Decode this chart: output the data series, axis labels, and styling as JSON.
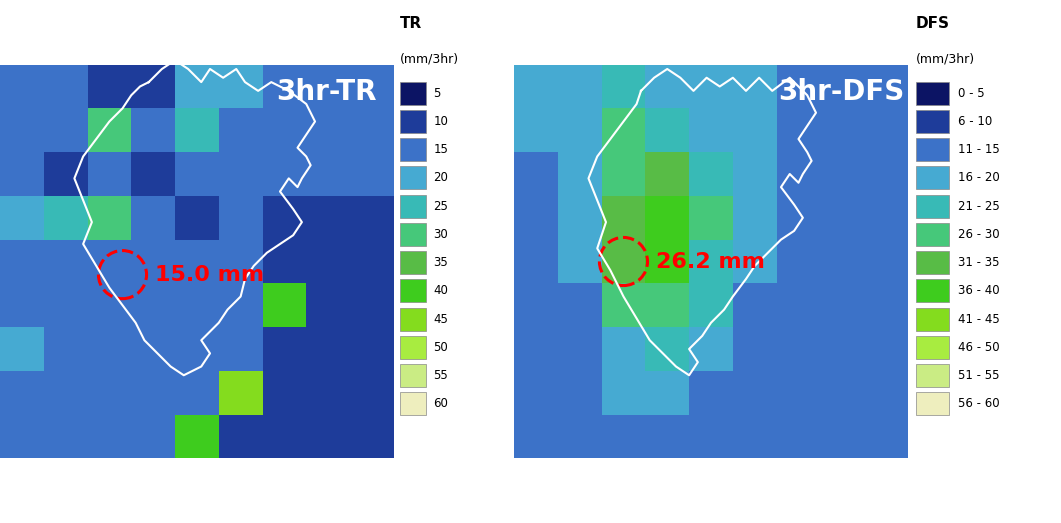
{
  "title_left": "3hr-TR",
  "title_right": "3hr-DFS",
  "annotation_left": "15.0 mm",
  "annotation_right": "26.2 mm",
  "legend_title_left1": "TR",
  "legend_title_left2": "(mm/3hr)",
  "legend_title_right1": "DFS",
  "legend_title_right2": "(mm/3hr)",
  "legend_labels_left": [
    "5",
    "10",
    "15",
    "20",
    "25",
    "30",
    "35",
    "40",
    "45",
    "50",
    "55",
    "60"
  ],
  "legend_labels_right": [
    "0 - 5",
    "6 - 10",
    "11 - 15",
    "16 - 20",
    "21 - 25",
    "26 - 30",
    "31 - 35",
    "36 - 40",
    "41 - 45",
    "46 - 50",
    "51 - 55",
    "56 - 60"
  ],
  "colormap": [
    "#0c1464",
    "#1e3c9a",
    "#3c72c8",
    "#46aad2",
    "#38bab6",
    "#46c87a",
    "#58bc46",
    "#3ecc1e",
    "#84dc1e",
    "#a8ec40",
    "#caec84",
    "#eeeebe"
  ],
  "levels": [
    0,
    5,
    10,
    15,
    20,
    25,
    30,
    35,
    40,
    45,
    50,
    55,
    60
  ],
  "background_color": "#2050b8",
  "fig_bg": "#ffffff",
  "ncols": 9,
  "nrows": 9,
  "tr_grid": [
    [
      10,
      10,
      5,
      5,
      15,
      15,
      10,
      10,
      10
    ],
    [
      10,
      10,
      25,
      10,
      20,
      10,
      10,
      10,
      10
    ],
    [
      10,
      5,
      10,
      5,
      10,
      10,
      10,
      10,
      10
    ],
    [
      15,
      20,
      25,
      10,
      5,
      10,
      5,
      5,
      5
    ],
    [
      10,
      10,
      10,
      10,
      10,
      10,
      5,
      5,
      5
    ],
    [
      10,
      10,
      10,
      10,
      10,
      10,
      35,
      5,
      5
    ],
    [
      15,
      10,
      10,
      10,
      10,
      10,
      5,
      5,
      5
    ],
    [
      10,
      10,
      10,
      10,
      10,
      40,
      5,
      5,
      5
    ],
    [
      10,
      10,
      10,
      10,
      35,
      5,
      5,
      5,
      5
    ]
  ],
  "dfs_grid": [
    [
      15,
      15,
      20,
      15,
      15,
      15,
      10,
      10,
      10
    ],
    [
      15,
      15,
      25,
      20,
      15,
      15,
      10,
      10,
      10
    ],
    [
      10,
      15,
      28,
      32,
      20,
      15,
      10,
      10,
      10
    ],
    [
      10,
      15,
      33,
      37,
      25,
      15,
      10,
      10,
      10
    ],
    [
      10,
      15,
      30,
      35,
      22,
      15,
      10,
      10,
      10
    ],
    [
      10,
      10,
      25,
      28,
      20,
      12,
      10,
      10,
      10
    ],
    [
      10,
      10,
      18,
      22,
      15,
      10,
      10,
      10,
      10
    ],
    [
      10,
      10,
      15,
      15,
      12,
      10,
      10,
      10,
      10
    ],
    [
      10,
      10,
      10,
      10,
      10,
      10,
      10,
      10,
      10
    ]
  ],
  "tr_boundary_x": [
    3.5,
    3.7,
    4.0,
    4.3,
    4.5,
    4.8,
    5.0,
    5.3,
    5.5,
    5.8,
    6.2,
    6.5,
    7.0,
    7.2,
    7.0,
    6.8,
    7.0,
    7.2,
    7.0,
    6.8,
    6.5,
    6.2,
    6.5,
    6.8,
    6.5,
    6.2,
    5.8,
    5.5,
    5.5,
    5.2,
    5.0,
    4.8,
    4.5,
    4.3,
    4.5,
    4.3,
    4.0,
    3.8,
    3.5,
    3.2,
    3.0,
    2.8,
    2.5,
    2.3,
    2.0,
    2.2,
    2.0,
    1.8,
    2.0,
    2.3,
    2.5,
    2.8,
    3.0,
    3.2,
    3.5
  ],
  "tr_boundary_y": [
    8.7,
    9.0,
    9.2,
    9.0,
    8.7,
    9.0,
    8.8,
    9.0,
    8.7,
    8.5,
    8.7,
    8.5,
    8.2,
    7.8,
    7.5,
    7.2,
    7.0,
    6.8,
    6.5,
    6.3,
    6.5,
    6.2,
    5.8,
    5.5,
    5.2,
    5.0,
    4.8,
    4.5,
    4.2,
    3.8,
    3.5,
    3.2,
    3.0,
    2.8,
    2.5,
    2.2,
    2.0,
    2.2,
    2.5,
    2.8,
    3.2,
    3.5,
    4.0,
    4.5,
    5.0,
    5.5,
    6.0,
    6.5,
    7.0,
    7.5,
    8.0,
    8.3,
    8.5,
    8.7,
    8.7
  ],
  "dfs_boundary_x": [
    3.0,
    3.2,
    3.5,
    3.8,
    4.0,
    4.3,
    4.5,
    4.8,
    5.0,
    5.3,
    5.8,
    6.2,
    6.8,
    7.0,
    6.8,
    6.5,
    6.8,
    7.0,
    6.8,
    6.5,
    6.2,
    6.5,
    6.8,
    6.5,
    6.2,
    5.8,
    5.5,
    5.2,
    5.0,
    4.8,
    4.5,
    4.3,
    4.0,
    3.8,
    3.5,
    3.2,
    3.0,
    2.8,
    2.5,
    2.2,
    2.0,
    2.2,
    2.0,
    1.8,
    2.0,
    2.3,
    2.5,
    2.8,
    3.0
  ],
  "dfs_boundary_y": [
    8.5,
    8.8,
    9.0,
    8.8,
    8.5,
    8.8,
    8.5,
    8.8,
    8.5,
    8.8,
    8.5,
    8.8,
    8.5,
    8.0,
    7.5,
    7.2,
    6.8,
    6.5,
    6.2,
    6.0,
    6.2,
    5.8,
    5.5,
    5.2,
    4.8,
    4.5,
    4.2,
    3.8,
    3.5,
    3.2,
    2.8,
    2.5,
    2.2,
    2.0,
    2.2,
    2.5,
    2.8,
    3.2,
    3.8,
    4.5,
    5.0,
    5.5,
    6.0,
    6.5,
    7.0,
    7.5,
    8.0,
    8.3,
    8.5
  ]
}
